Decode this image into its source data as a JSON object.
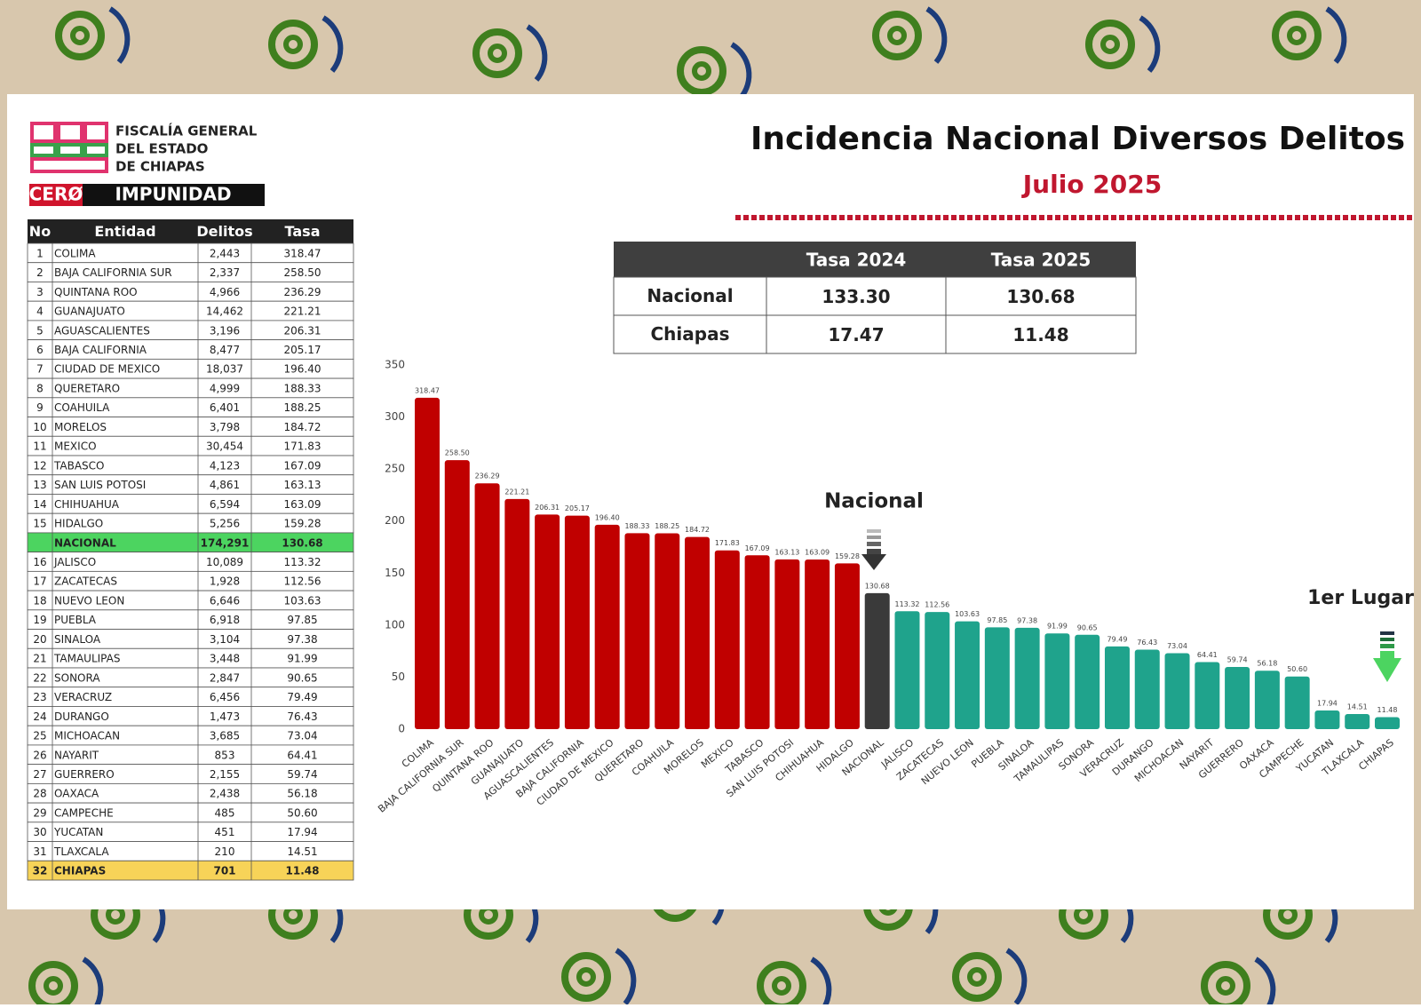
{
  "header": {
    "org": [
      "FISCALÍA GENERAL",
      "DEL ESTADO",
      "DE CHIAPAS"
    ],
    "slogan": [
      "CERØ",
      "IMPUNIDAD"
    ]
  },
  "table": {
    "columns": [
      "No",
      "Entidad",
      "Delitos",
      "Tasa"
    ],
    "rows": [
      {
        "no": "1",
        "entidad": "COLIMA",
        "delitos": "2,443",
        "tasa": "318.47"
      },
      {
        "no": "2",
        "entidad": "BAJA CALIFORNIA SUR",
        "delitos": "2,337",
        "tasa": "258.50"
      },
      {
        "no": "3",
        "entidad": "QUINTANA ROO",
        "delitos": "4,966",
        "tasa": "236.29"
      },
      {
        "no": "4",
        "entidad": "GUANAJUATO",
        "delitos": "14,462",
        "tasa": "221.21"
      },
      {
        "no": "5",
        "entidad": "AGUASCALIENTES",
        "delitos": "3,196",
        "tasa": "206.31"
      },
      {
        "no": "6",
        "entidad": "BAJA CALIFORNIA",
        "delitos": "8,477",
        "tasa": "205.17"
      },
      {
        "no": "7",
        "entidad": "CIUDAD DE MEXICO",
        "delitos": "18,037",
        "tasa": "196.40"
      },
      {
        "no": "8",
        "entidad": "QUERETARO",
        "delitos": "4,999",
        "tasa": "188.33"
      },
      {
        "no": "9",
        "entidad": "COAHUILA",
        "delitos": "6,401",
        "tasa": "188.25"
      },
      {
        "no": "10",
        "entidad": "MORELOS",
        "delitos": "3,798",
        "tasa": "184.72"
      },
      {
        "no": "11",
        "entidad": "MEXICO",
        "delitos": "30,454",
        "tasa": "171.83"
      },
      {
        "no": "12",
        "entidad": "TABASCO",
        "delitos": "4,123",
        "tasa": "167.09"
      },
      {
        "no": "13",
        "entidad": "SAN LUIS POTOSI",
        "delitos": "4,861",
        "tasa": "163.13"
      },
      {
        "no": "14",
        "entidad": "CHIHUAHUA",
        "delitos": "6,594",
        "tasa": "163.09"
      },
      {
        "no": "15",
        "entidad": "HIDALGO",
        "delitos": "5,256",
        "tasa": "159.28"
      },
      {
        "entidad": "NACIONAL",
        "delitos": "174,291",
        "tasa": "130.68",
        "color": "#4cd460"
      },
      {
        "no": "16",
        "entidad": "JALISCO",
        "delitos": "10,089",
        "tasa": "113.32"
      },
      {
        "no": "17",
        "entidad": "ZACATECAS",
        "delitos": "1,928",
        "tasa": "112.56"
      },
      {
        "no": "18",
        "entidad": "NUEVO LEON",
        "delitos": "6,646",
        "tasa": "103.63"
      },
      {
        "no": "19",
        "entidad": "PUEBLA",
        "delitos": "6,918",
        "tasa": "97.85"
      },
      {
        "no": "20",
        "entidad": "SINALOA",
        "delitos": "3,104",
        "tasa": "97.38"
      },
      {
        "no": "21",
        "entidad": "TAMAULIPAS",
        "delitos": "3,448",
        "tasa": "91.99"
      },
      {
        "no": "22",
        "entidad": "SONORA",
        "delitos": "2,847",
        "tasa": "90.65"
      },
      {
        "no": "23",
        "entidad": "VERACRUZ",
        "delitos": "6,456",
        "tasa": "79.49"
      },
      {
        "no": "24",
        "entidad": "DURANGO",
        "delitos": "1,473",
        "tasa": "76.43"
      },
      {
        "no": "25",
        "entidad": "MICHOACAN",
        "delitos": "3,685",
        "tasa": "73.04"
      },
      {
        "no": "26",
        "entidad": "NAYARIT",
        "delitos": "853",
        "tasa": "64.41"
      },
      {
        "no": "27",
        "entidad": "GUERRERO",
        "delitos": "2,155",
        "tasa": "59.74"
      },
      {
        "no": "28",
        "entidad": "OAXACA",
        "delitos": "2,438",
        "tasa": "56.18"
      },
      {
        "no": "29",
        "entidad": "CAMPECHE",
        "delitos": "485",
        "tasa": "50.60"
      },
      {
        "no": "30",
        "entidad": "YUCATAN",
        "delitos": "451",
        "tasa": "17.94"
      },
      {
        "no": "31",
        "entidad": "TLAXCALA",
        "delitos": "210",
        "tasa": "14.51"
      },
      {
        "no": "32",
        "entidad": "CHIAPAS",
        "delitos": "701",
        "tasa": "11.48",
        "color": "#f7d358"
      }
    ]
  },
  "summary": {
    "columns": [
      "Tasa 2024",
      "Tasa 2025"
    ],
    "rows": [
      {
        "label": "Nacional",
        "values": [
          "133.30",
          "130.68"
        ]
      },
      {
        "label": "Chiapas",
        "values": [
          "17.47",
          "11.48"
        ]
      }
    ]
  },
  "chart_data": {
    "type": "bar",
    "title": "Incidencia Nacional Diversos Delitos",
    "subtitle": "Julio 2025",
    "categories": [
      "COLIMA",
      "BAJA CALIFORNIA SUR",
      "QUINTANA ROO",
      "GUANAJUATO",
      "AGUASCALIENTES",
      "BAJA CALIFORNIA",
      "CIUDAD DE MEXICO",
      "QUERETARO",
      "COAHUILA",
      "MORELOS",
      "MEXICO",
      "TABASCO",
      "SAN LUIS POTOSI",
      "CHIHUAHUA",
      "HIDALGO",
      "NACIONAL",
      "JALISCO",
      "ZACATECAS",
      "NUEVO LEON",
      "PUEBLA",
      "SINALOA",
      "TAMAULIPAS",
      "SONORA",
      "VERACRUZ",
      "DURANGO",
      "MICHOACAN",
      "NAYARIT",
      "GUERRERO",
      "OAXACA",
      "CAMPECHE",
      "YUCATAN",
      "TLAXCALA",
      "CHIAPAS"
    ],
    "values": [
      318.47,
      258.5,
      236.29,
      221.21,
      206.31,
      205.17,
      196.4,
      188.33,
      188.25,
      184.72,
      171.83,
      167.09,
      163.13,
      163.09,
      159.28,
      130.68,
      113.32,
      112.56,
      103.63,
      97.85,
      97.38,
      91.99,
      90.65,
      79.49,
      76.43,
      73.04,
      64.41,
      59.74,
      56.18,
      50.6,
      17.94,
      14.51,
      11.48
    ],
    "value_labels": [
      "318.47",
      "258.50",
      "236.29",
      "221.21",
      "206.31",
      "205.17",
      "196.40",
      "188.33",
      "188.25",
      "184.72",
      "171.83",
      "167.09",
      "163.13",
      "163.09",
      "159.28",
      "130.68",
      "113.32",
      "112.56",
      "103.63",
      "97.85",
      "97.38",
      "91.99",
      "90.65",
      "79.49",
      "76.43",
      "73.04",
      "64.41",
      "59.74",
      "56.18",
      "50.60",
      "17.94",
      "14.51",
      "11.48"
    ],
    "colors": [
      "#c00000",
      "#c00000",
      "#c00000",
      "#c00000",
      "#c00000",
      "#c00000",
      "#c00000",
      "#c00000",
      "#c00000",
      "#c00000",
      "#c00000",
      "#c00000",
      "#c00000",
      "#c00000",
      "#c00000",
      "#3a3a3a",
      "#1fa38c",
      "#1fa38c",
      "#1fa38c",
      "#1fa38c",
      "#1fa38c",
      "#1fa38c",
      "#1fa38c",
      "#1fa38c",
      "#1fa38c",
      "#1fa38c",
      "#1fa38c",
      "#1fa38c",
      "#1fa38c",
      "#1fa38c",
      "#1fa38c",
      "#1fa38c",
      "#1fa38c"
    ],
    "ylim": [
      0,
      350
    ],
    "yticks": [
      0,
      50,
      100,
      150,
      200,
      250,
      300,
      350
    ],
    "grid": false,
    "annotations": [
      "Nacional",
      "1er Lugar"
    ]
  }
}
